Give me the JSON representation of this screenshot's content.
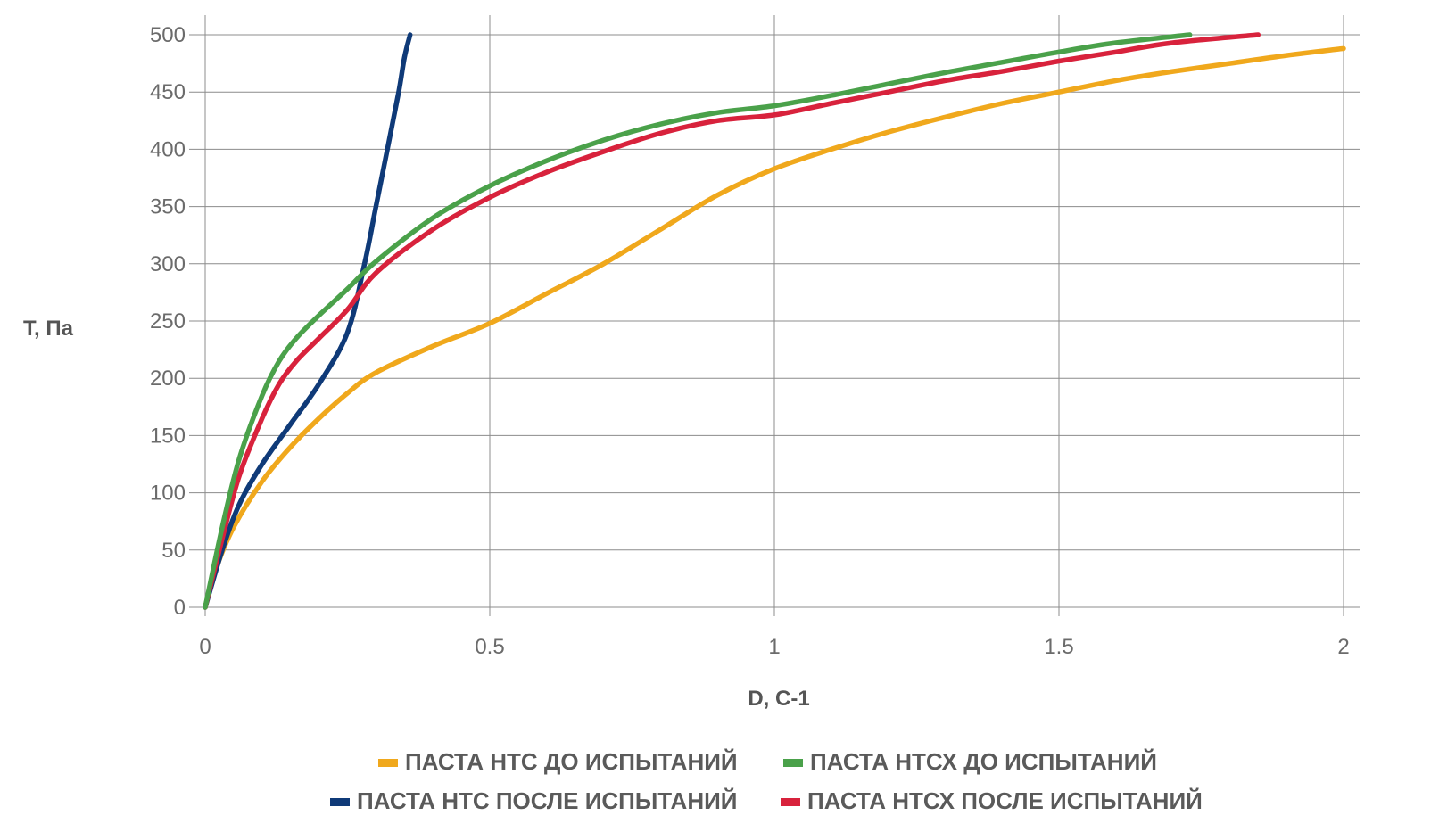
{
  "chart_data": {
    "type": "line",
    "xlabel": "D, С-1",
    "ylabel": "T, Па",
    "xlim": [
      0,
      2
    ],
    "ylim": [
      0,
      500
    ],
    "xticks": [
      0,
      0.5,
      1,
      1.5,
      2
    ],
    "xtick_labels": [
      "0",
      "0.5",
      "1",
      "1.5",
      "2"
    ],
    "yticks": [
      0,
      50,
      100,
      150,
      200,
      250,
      300,
      350,
      400,
      450,
      500
    ],
    "ytick_labels": [
      "0",
      "50",
      "100",
      "150",
      "200",
      "250",
      "300",
      "350",
      "400",
      "450",
      "500"
    ],
    "grid": true,
    "legend_position": "bottom",
    "series": [
      {
        "name": "ПАСТА НТС ДО ИСПЫТАНИЙ",
        "color": "#f0a81c",
        "x": [
          0,
          0.02,
          0.05,
          0.1,
          0.15,
          0.2,
          0.25,
          0.3,
          0.4,
          0.5,
          0.6,
          0.7,
          0.8,
          0.9,
          1.0,
          1.1,
          1.2,
          1.3,
          1.4,
          1.5,
          1.6,
          1.7,
          1.8,
          1.9,
          2.0
        ],
        "y": [
          0,
          35,
          70,
          110,
          140,
          165,
          187,
          205,
          228,
          248,
          274,
          300,
          330,
          360,
          383,
          400,
          415,
          428,
          440,
          450,
          460,
          468,
          475,
          482,
          488
        ]
      },
      {
        "name": "ПАСТА НТСХ ДО ИСПЫТАНИЙ",
        "color": "#4aa14a",
        "x": [
          0,
          0.03,
          0.06,
          0.1,
          0.13,
          0.16,
          0.2,
          0.25,
          0.3,
          0.4,
          0.5,
          0.6,
          0.7,
          0.8,
          0.9,
          1.0,
          1.1,
          1.2,
          1.3,
          1.4,
          1.5,
          1.6,
          1.73
        ],
        "y": [
          0,
          70,
          130,
          185,
          215,
          235,
          255,
          278,
          302,
          340,
          368,
          390,
          408,
          422,
          432,
          438,
          447,
          457,
          467,
          476,
          485,
          493,
          500
        ]
      },
      {
        "name": "ПАСТА НТС ПОСЛЕ ИСПЫТАНИЙ",
        "color": "#0f3a78",
        "x": [
          0,
          0.03,
          0.06,
          0.1,
          0.15,
          0.2,
          0.25,
          0.28,
          0.3,
          0.32,
          0.34,
          0.35,
          0.36
        ],
        "y": [
          0,
          50,
          90,
          125,
          160,
          195,
          240,
          300,
          350,
          400,
          450,
          480,
          500
        ]
      },
      {
        "name": "ПАСТА НТСХ ПОСЛЕ ИСПЫТАНИЙ",
        "color": "#d8223c",
        "x": [
          0,
          0.03,
          0.06,
          0.1,
          0.13,
          0.16,
          0.2,
          0.25,
          0.3,
          0.4,
          0.5,
          0.6,
          0.7,
          0.8,
          0.9,
          1.0,
          1.1,
          1.2,
          1.3,
          1.4,
          1.5,
          1.6,
          1.7,
          1.85
        ],
        "y": [
          0,
          60,
          115,
          165,
          195,
          215,
          235,
          260,
          292,
          330,
          358,
          380,
          398,
          414,
          425,
          430,
          440,
          450,
          460,
          468,
          477,
          485,
          493,
          500
        ]
      }
    ]
  }
}
